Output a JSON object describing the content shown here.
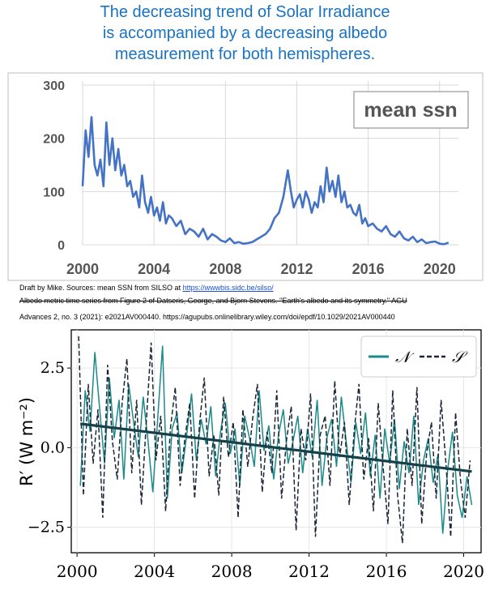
{
  "title": {
    "lines": [
      "The decreasing trend of Solar Irradiance",
      "is accompanied by a decreasing albedo",
      "measurement for both hemispheres."
    ]
  },
  "sources": {
    "line1_prefix": "Draft by Mike.  Sources:  mean SSN from SILSO at ",
    "line1_link": "https://wwwbis.sidc.be/silso/",
    "line2": "Albedo metric time series from Figure 2 of Datseris, George, and Bjorn Stevens. \"Earth's albedo and its symmetry.\" AGU",
    "line3": "Advances 2, no. 3 (2021): e2021AV000440. https://agupubs.onlinelibrary.wiley.com/doi/epdf/10.1029/2021AV000440"
  },
  "colors": {
    "title": "#1a73c2",
    "ssn_line": "#4472c4",
    "north": "#1b8a8a",
    "south": "#1a2538",
    "trend": "#14414a"
  },
  "chart_data": [
    {
      "type": "line",
      "label_box": "mean ssn",
      "xlabel": "",
      "ylabel": "",
      "xlim": [
        2000,
        2020.6
      ],
      "ylim": [
        0,
        300
      ],
      "x_ticks": [
        2000,
        2004,
        2008,
        2012,
        2016,
        2020
      ],
      "y_ticks": [
        0,
        100,
        200,
        300
      ],
      "grid": true,
      "series": [
        {
          "x": [
            2000.0,
            2000.17,
            2000.33,
            2000.5,
            2000.67,
            2000.83,
            2001.0,
            2001.17,
            2001.33,
            2001.5,
            2001.67,
            2001.83,
            2002.0,
            2002.17,
            2002.33,
            2002.5,
            2002.67,
            2002.83,
            2003.0,
            2003.17,
            2003.33,
            2003.5,
            2003.67,
            2003.83,
            2004.0,
            2004.17,
            2004.33,
            2004.5,
            2004.67,
            2004.83,
            2005.0,
            2005.25,
            2005.5,
            2005.75,
            2006.0,
            2006.25,
            2006.5,
            2006.75,
            2007.0,
            2007.25,
            2007.5,
            2007.75,
            2008.0,
            2008.25,
            2008.5,
            2008.75,
            2009.0,
            2009.25,
            2009.5,
            2009.75,
            2010.0,
            2010.25,
            2010.5,
            2010.75,
            2011.0,
            2011.25,
            2011.5,
            2011.67,
            2011.83,
            2012.0,
            2012.17,
            2012.33,
            2012.5,
            2012.67,
            2012.83,
            2013.0,
            2013.17,
            2013.33,
            2013.5,
            2013.67,
            2013.83,
            2014.0,
            2014.17,
            2014.33,
            2014.5,
            2014.67,
            2014.83,
            2015.0,
            2015.17,
            2015.33,
            2015.5,
            2015.67,
            2015.83,
            2016.0,
            2016.25,
            2016.5,
            2016.75,
            2017.0,
            2017.25,
            2017.5,
            2017.75,
            2018.0,
            2018.25,
            2018.5,
            2018.75,
            2019.0,
            2019.25,
            2019.5,
            2019.75,
            2020.0,
            2020.25,
            2020.5
          ],
          "values": [
            110,
            215,
            165,
            240,
            150,
            130,
            160,
            110,
            230,
            150,
            200,
            140,
            180,
            130,
            150,
            110,
            120,
            90,
            100,
            70,
            130,
            80,
            60,
            90,
            55,
            70,
            45,
            80,
            40,
            55,
            50,
            35,
            45,
            20,
            30,
            25,
            15,
            30,
            10,
            20,
            15,
            8,
            5,
            12,
            3,
            5,
            2,
            3,
            5,
            10,
            15,
            20,
            30,
            50,
            60,
            90,
            140,
            100,
            70,
            85,
            95,
            70,
            100,
            85,
            60,
            80,
            70,
            110,
            80,
            145,
            100,
            120,
            90,
            130,
            80,
            100,
            70,
            75,
            60,
            55,
            75,
            40,
            50,
            35,
            40,
            30,
            25,
            35,
            20,
            15,
            25,
            12,
            8,
            15,
            5,
            10,
            3,
            5,
            6,
            2,
            1,
            4
          ]
        }
      ]
    },
    {
      "type": "line",
      "ylabel": "R′ (W m⁻²)",
      "xlabel": "",
      "xlim": [
        1999.7,
        2020.9
      ],
      "ylim": [
        -3.3,
        3.7
      ],
      "x_ticks": [
        2000,
        2004,
        2008,
        2012,
        2016,
        2020
      ],
      "y_ticks": [
        -2.5,
        0.0,
        2.5
      ],
      "y_tick_labels": [
        "−2.5",
        "0.0",
        "2.5"
      ],
      "grid": true,
      "legend": {
        "placement": "top-right",
        "entries": [
          "𝒩",
          "𝒮"
        ]
      },
      "series": [
        {
          "name": "𝒩",
          "style": "solid",
          "x": [
            2000.17,
            2000.42,
            2000.67,
            2000.92,
            2001.17,
            2001.42,
            2001.67,
            2001.92,
            2002.17,
            2002.42,
            2002.67,
            2002.92,
            2003.17,
            2003.42,
            2003.67,
            2003.92,
            2004.17,
            2004.42,
            2004.67,
            2004.92,
            2005.17,
            2005.42,
            2005.67,
            2005.92,
            2006.17,
            2006.42,
            2006.67,
            2006.92,
            2007.17,
            2007.42,
            2007.67,
            2007.92,
            2008.17,
            2008.42,
            2008.67,
            2008.92,
            2009.17,
            2009.42,
            2009.67,
            2009.92,
            2010.17,
            2010.42,
            2010.67,
            2010.92,
            2011.17,
            2011.42,
            2011.67,
            2011.92,
            2012.17,
            2012.42,
            2012.67,
            2012.92,
            2013.17,
            2013.42,
            2013.67,
            2013.92,
            2014.17,
            2014.42,
            2014.67,
            2014.92,
            2015.17,
            2015.42,
            2015.67,
            2015.92,
            2016.17,
            2016.42,
            2016.67,
            2016.92,
            2017.17,
            2017.42,
            2017.67,
            2017.92,
            2018.17,
            2018.42,
            2018.67,
            2018.92,
            2019.17,
            2019.42,
            2019.67,
            2019.92,
            2020.17,
            2020.42
          ],
          "values": [
            -1.2,
            1.8,
            0.5,
            3.0,
            1.2,
            -0.5,
            2.2,
            0.3,
            1.5,
            -1.0,
            2.0,
            0.8,
            -0.3,
            1.6,
            0.2,
            -1.4,
            0.9,
            3.2,
            -1.6,
            0.6,
            1.1,
            -0.8,
            0.4,
            1.7,
            -0.4,
            0.9,
            0.1,
            1.3,
            -0.9,
            0.5,
            1.4,
            -0.2,
            0.6,
            -1.2,
            1.0,
            0.3,
            -0.6,
            1.8,
            -0.1,
            0.7,
            -1.0,
            0.4,
            1.2,
            -0.5,
            0.2,
            1.0,
            -0.8,
            0.6,
            -0.3,
            1.5,
            -1.2,
            0.3,
            0.9,
            -0.6,
            1.6,
            0.2,
            -1.1,
            0.8,
            -0.2,
            1.1,
            -0.9,
            0.4,
            -1.6,
            0.6,
            -0.5,
            0.9,
            -1.3,
            0.2,
            -0.8,
            1.0,
            -1.8,
            -0.4,
            0.3,
            -1.1,
            -0.2,
            -2.7,
            -0.7,
            0.5,
            -1.5,
            -2.2,
            -0.9,
            -1.8
          ]
        },
        {
          "name": "𝒮",
          "style": "dashed",
          "x": [
            2000.08,
            2000.33,
            2000.58,
            2000.83,
            2001.08,
            2001.33,
            2001.58,
            2001.83,
            2002.08,
            2002.33,
            2002.58,
            2002.83,
            2003.08,
            2003.33,
            2003.58,
            2003.83,
            2004.08,
            2004.33,
            2004.58,
            2004.83,
            2005.08,
            2005.33,
            2005.58,
            2005.83,
            2006.08,
            2006.33,
            2006.58,
            2006.83,
            2007.08,
            2007.33,
            2007.58,
            2007.83,
            2008.08,
            2008.33,
            2008.58,
            2008.83,
            2009.08,
            2009.33,
            2009.58,
            2009.83,
            2010.08,
            2010.33,
            2010.58,
            2010.83,
            2011.08,
            2011.33,
            2011.58,
            2011.83,
            2012.08,
            2012.33,
            2012.58,
            2012.83,
            2013.08,
            2013.33,
            2013.58,
            2013.83,
            2014.08,
            2014.33,
            2014.58,
            2014.83,
            2015.08,
            2015.33,
            2015.58,
            2015.83,
            2016.08,
            2016.33,
            2016.58,
            2016.83,
            2017.08,
            2017.33,
            2017.58,
            2017.83,
            2018.08,
            2018.33,
            2018.58,
            2018.83,
            2019.08,
            2019.33,
            2019.58,
            2019.83,
            2020.08,
            2020.33
          ],
          "values": [
            3.5,
            -1.5,
            2.0,
            -0.5,
            1.2,
            -2.2,
            2.6,
            0.2,
            -1.0,
            1.4,
            2.8,
            -0.8,
            1.5,
            -1.8,
            0.8,
            3.3,
            -0.4,
            1.0,
            -2.0,
            0.6,
            1.9,
            -1.2,
            0.3,
            1.4,
            -1.6,
            0.7,
            2.2,
            -0.9,
            0.4,
            -1.5,
            1.6,
            -0.3,
            0.8,
            -2.2,
            1.2,
            -0.6,
            0.9,
            2.0,
            -1.4,
            0.5,
            -0.8,
            1.8,
            -1.6,
            0.2,
            1.3,
            -2.6,
            0.6,
            -0.4,
            1.7,
            -2.8,
            0.4,
            1.0,
            -1.2,
            2.1,
            -0.3,
            0.8,
            -1.8,
            0.5,
            2.0,
            -1.0,
            0.3,
            -2.0,
            1.4,
            -0.6,
            -2.4,
            1.8,
            -1.5,
            -3.0,
            0.6,
            -1.2,
            1.9,
            -2.4,
            -0.2,
            0.8,
            -1.6,
            1.5,
            -0.5,
            -2.8,
            1.1,
            -1.0,
            -2.2,
            -0.4
          ]
        },
        {
          "name": "trend",
          "style": "solid",
          "x": [
            2000.17,
            2020.42
          ],
          "values": [
            0.75,
            -0.75
          ]
        }
      ]
    }
  ]
}
